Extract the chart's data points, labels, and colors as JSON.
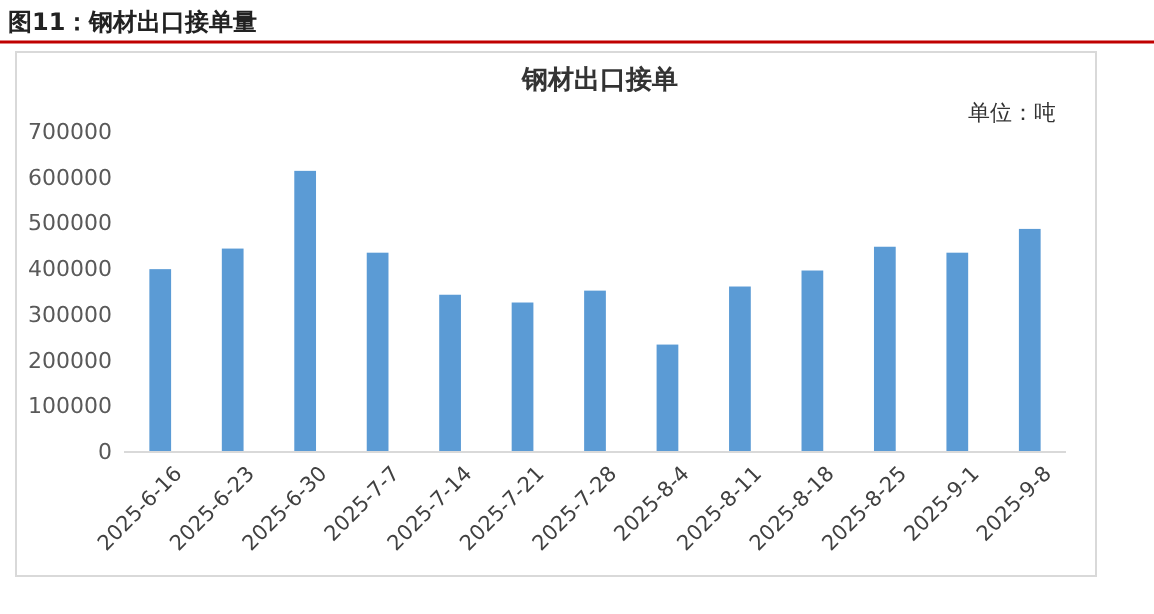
{
  "chart_data": {
    "type": "bar",
    "title": "图11：钢材出口接单量",
    "subtitle": "钢材出口接单",
    "annotations": [
      "单位：吨"
    ],
    "categories": [
      "2025-6-16",
      "2025-6-23",
      "2025-6-30",
      "2025-7-7",
      "2025-7-14",
      "2025-7-21",
      "2025-7-28",
      "2025-8-4",
      "2025-8-11",
      "2025-8-18",
      "2025-8-25",
      "2025-9-1",
      "2025-9-8"
    ],
    "values": [
      400000,
      445000,
      615000,
      436000,
      344000,
      327000,
      353000,
      235000,
      362000,
      397000,
      449000,
      436000,
      488000
    ],
    "color": "#5b9bd5",
    "ylim": [
      0,
      700000
    ],
    "yticks": [
      0,
      100000,
      200000,
      300000,
      400000,
      500000,
      600000,
      700000
    ],
    "grid": false
  }
}
